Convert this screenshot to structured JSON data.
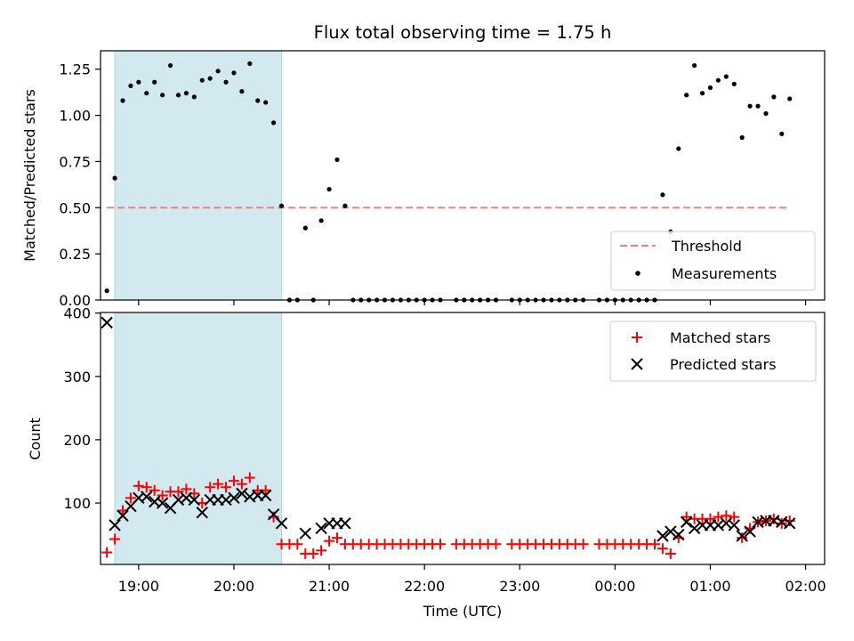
{
  "chart_data": [
    {
      "type": "scatter",
      "title": "Flux total observing time = 1.75 h",
      "xlabel": "",
      "ylabel": "Matched/Predicted stars",
      "ylim": [
        0,
        1.35
      ],
      "yticks": [
        "0.00",
        "0.25",
        "0.50",
        "0.75",
        "1.00",
        "1.25"
      ],
      "x_axis": "time UTC, 18:36 to 02:12",
      "shaded_span": [
        "18:45",
        "20:30"
      ],
      "shaded_color": "#d3e9f0",
      "threshold": {
        "name": "Threshold",
        "value": 0.5,
        "from": "18:40",
        "to": "01:50",
        "color": "#f08080"
      },
      "legend_position": "lower right",
      "series": [
        {
          "name": "Measurements",
          "color": "#000000",
          "points": [
            [
              "18:40",
              0.05
            ],
            [
              "18:45",
              0.66
            ],
            [
              "18:50",
              1.08
            ],
            [
              "18:55",
              1.16
            ],
            [
              "19:00",
              1.18
            ],
            [
              "19:05",
              1.12
            ],
            [
              "19:10",
              1.18
            ],
            [
              "19:15",
              1.11
            ],
            [
              "19:20",
              1.27
            ],
            [
              "19:25",
              1.11
            ],
            [
              "19:30",
              1.12
            ],
            [
              "19:35",
              1.1
            ],
            [
              "19:40",
              1.19
            ],
            [
              "19:45",
              1.2
            ],
            [
              "19:50",
              1.24
            ],
            [
              "19:55",
              1.18
            ],
            [
              "20:00",
              1.23
            ],
            [
              "20:05",
              1.13
            ],
            [
              "20:10",
              1.28
            ],
            [
              "20:15",
              1.08
            ],
            [
              "20:20",
              1.07
            ],
            [
              "20:25",
              0.96
            ],
            [
              "20:30",
              0.51
            ],
            [
              "20:35",
              0.0
            ],
            [
              "20:40",
              0.0
            ],
            [
              "20:45",
              0.39
            ],
            [
              "20:50",
              0.0
            ],
            [
              "20:55",
              0.43
            ],
            [
              "21:00",
              0.6
            ],
            [
              "21:05",
              0.76
            ],
            [
              "21:10",
              0.51
            ],
            [
              "21:15",
              0.0
            ],
            [
              "21:20",
              0.0
            ],
            [
              "21:25",
              0.0
            ],
            [
              "21:30",
              0.0
            ],
            [
              "21:35",
              0.0
            ],
            [
              "21:40",
              0.0
            ],
            [
              "21:45",
              0.0
            ],
            [
              "21:50",
              0.0
            ],
            [
              "21:55",
              0.0
            ],
            [
              "22:00",
              0.0
            ],
            [
              "22:05",
              0.0
            ],
            [
              "22:10",
              0.0
            ],
            [
              "22:20",
              0.0
            ],
            [
              "22:25",
              0.0
            ],
            [
              "22:30",
              0.0
            ],
            [
              "22:35",
              0.0
            ],
            [
              "22:40",
              0.0
            ],
            [
              "22:45",
              0.0
            ],
            [
              "22:55",
              0.0
            ],
            [
              "23:00",
              0.0
            ],
            [
              "23:05",
              0.0
            ],
            [
              "23:10",
              0.0
            ],
            [
              "23:15",
              0.0
            ],
            [
              "23:20",
              0.0
            ],
            [
              "23:25",
              0.0
            ],
            [
              "23:30",
              0.0
            ],
            [
              "23:35",
              0.0
            ],
            [
              "23:40",
              0.0
            ],
            [
              "23:50",
              0.0
            ],
            [
              "23:55",
              0.0
            ],
            [
              "00:00",
              0.0
            ],
            [
              "00:05",
              0.0
            ],
            [
              "00:10",
              0.0
            ],
            [
              "00:15",
              0.0
            ],
            [
              "00:20",
              0.0
            ],
            [
              "00:25",
              0.0
            ],
            [
              "00:30",
              0.57
            ],
            [
              "00:35",
              0.37
            ],
            [
              "00:40",
              0.82
            ],
            [
              "00:45",
              1.11
            ],
            [
              "00:50",
              1.27
            ],
            [
              "00:55",
              1.12
            ],
            [
              "01:00",
              1.15
            ],
            [
              "01:05",
              1.19
            ],
            [
              "01:10",
              1.21
            ],
            [
              "01:15",
              1.17
            ],
            [
              "01:20",
              0.88
            ],
            [
              "01:25",
              1.05
            ],
            [
              "01:30",
              1.05
            ],
            [
              "01:35",
              1.01
            ],
            [
              "01:40",
              1.1
            ],
            [
              "01:45",
              0.9
            ],
            [
              "01:50",
              1.09
            ]
          ]
        }
      ]
    },
    {
      "type": "scatter",
      "title": "",
      "xlabel": "Time (UTC)",
      "ylabel": "Count",
      "ylim": [
        3,
        401
      ],
      "yticks": [
        "100",
        "200",
        "300",
        "400"
      ],
      "xticks": [
        "19:00",
        "20:00",
        "21:00",
        "22:00",
        "23:00",
        "00:00",
        "01:00",
        "02:00"
      ],
      "shaded_span": [
        "18:45",
        "20:30"
      ],
      "shaded_color": "#d3e9f0",
      "legend_position": "upper right",
      "series": [
        {
          "name": "Matched stars",
          "color": "#ff0000",
          "marker": "+",
          "points": [
            [
              "18:40",
              22
            ],
            [
              "18:45",
              43
            ],
            [
              "18:50",
              88
            ],
            [
              "18:55",
              108
            ],
            [
              "19:00",
              127
            ],
            [
              "19:05",
              125
            ],
            [
              "19:10",
              120
            ],
            [
              "19:15",
              112
            ],
            [
              "19:20",
              118
            ],
            [
              "19:25",
              118
            ],
            [
              "19:30",
              122
            ],
            [
              "19:35",
              115
            ],
            [
              "19:40",
              100
            ],
            [
              "19:45",
              125
            ],
            [
              "19:50",
              130
            ],
            [
              "19:55",
              125
            ],
            [
              "20:00",
              135
            ],
            [
              "20:05",
              130
            ],
            [
              "20:10",
              140
            ],
            [
              "20:15",
              120
            ],
            [
              "20:20",
              120
            ],
            [
              "20:25",
              78
            ],
            [
              "20:30",
              35
            ],
            [
              "20:35",
              35
            ],
            [
              "20:40",
              35
            ],
            [
              "20:45",
              20
            ],
            [
              "20:50",
              20
            ],
            [
              "20:55",
              25
            ],
            [
              "21:00",
              40
            ],
            [
              "21:05",
              45
            ],
            [
              "21:10",
              35
            ],
            [
              "21:15",
              35
            ],
            [
              "21:20",
              35
            ],
            [
              "21:25",
              35
            ],
            [
              "21:30",
              35
            ],
            [
              "21:35",
              35
            ],
            [
              "21:40",
              35
            ],
            [
              "21:45",
              35
            ],
            [
              "21:50",
              35
            ],
            [
              "21:55",
              35
            ],
            [
              "22:00",
              35
            ],
            [
              "22:05",
              35
            ],
            [
              "22:10",
              35
            ],
            [
              "22:20",
              35
            ],
            [
              "22:25",
              35
            ],
            [
              "22:30",
              35
            ],
            [
              "22:35",
              35
            ],
            [
              "22:40",
              35
            ],
            [
              "22:45",
              35
            ],
            [
              "22:55",
              35
            ],
            [
              "23:00",
              35
            ],
            [
              "23:05",
              35
            ],
            [
              "23:10",
              35
            ],
            [
              "23:15",
              35
            ],
            [
              "23:20",
              35
            ],
            [
              "23:25",
              35
            ],
            [
              "23:30",
              35
            ],
            [
              "23:35",
              35
            ],
            [
              "23:40",
              35
            ],
            [
              "23:50",
              35
            ],
            [
              "23:55",
              35
            ],
            [
              "00:00",
              35
            ],
            [
              "00:05",
              35
            ],
            [
              "00:10",
              35
            ],
            [
              "00:15",
              35
            ],
            [
              "00:20",
              35
            ],
            [
              "00:25",
              35
            ],
            [
              "00:30",
              28
            ],
            [
              "00:35",
              20
            ],
            [
              "00:40",
              45
            ],
            [
              "00:45",
              78
            ],
            [
              "00:50",
              75
            ],
            [
              "00:55",
              75
            ],
            [
              "01:00",
              75
            ],
            [
              "01:05",
              78
            ],
            [
              "01:10",
              80
            ],
            [
              "01:15",
              78
            ],
            [
              "01:20",
              45
            ],
            [
              "01:25",
              60
            ],
            [
              "01:30",
              70
            ],
            [
              "01:35",
              72
            ],
            [
              "01:40",
              75
            ],
            [
              "01:45",
              68
            ],
            [
              "01:50",
              72
            ]
          ]
        },
        {
          "name": "Predicted stars",
          "color": "#000000",
          "marker": "x",
          "points": [
            [
              "18:40",
              385
            ],
            [
              "18:45",
              65
            ],
            [
              "18:50",
              80
            ],
            [
              "18:55",
              95
            ],
            [
              "19:00",
              108
            ],
            [
              "19:05",
              110
            ],
            [
              "19:10",
              102
            ],
            [
              "19:15",
              100
            ],
            [
              "19:20",
              92
            ],
            [
              "19:25",
              105
            ],
            [
              "19:30",
              108
            ],
            [
              "19:35",
              105
            ],
            [
              "19:40",
              85
            ],
            [
              "19:45",
              105
            ],
            [
              "19:50",
              105
            ],
            [
              "19:55",
              105
            ],
            [
              "20:00",
              108
            ],
            [
              "20:05",
              115
            ],
            [
              "20:10",
              110
            ],
            [
              "20:15",
              112
            ],
            [
              "20:20",
              112
            ],
            [
              "20:25",
              82
            ],
            [
              "20:30",
              68
            ],
            [
              "20:45",
              52
            ],
            [
              "20:55",
              60
            ],
            [
              "21:00",
              68
            ],
            [
              "21:05",
              68
            ],
            [
              "21:10",
              68
            ],
            [
              "00:30",
              48
            ],
            [
              "00:35",
              55
            ],
            [
              "00:40",
              50
            ],
            [
              "00:45",
              70
            ],
            [
              "00:50",
              60
            ],
            [
              "00:55",
              65
            ],
            [
              "01:00",
              65
            ],
            [
              "01:05",
              65
            ],
            [
              "01:10",
              68
            ],
            [
              "01:15",
              65
            ],
            [
              "01:20",
              48
            ],
            [
              "01:25",
              55
            ],
            [
              "01:30",
              70
            ],
            [
              "01:35",
              72
            ],
            [
              "01:40",
              72
            ],
            [
              "01:45",
              70
            ],
            [
              "01:50",
              68
            ]
          ]
        }
      ]
    }
  ]
}
